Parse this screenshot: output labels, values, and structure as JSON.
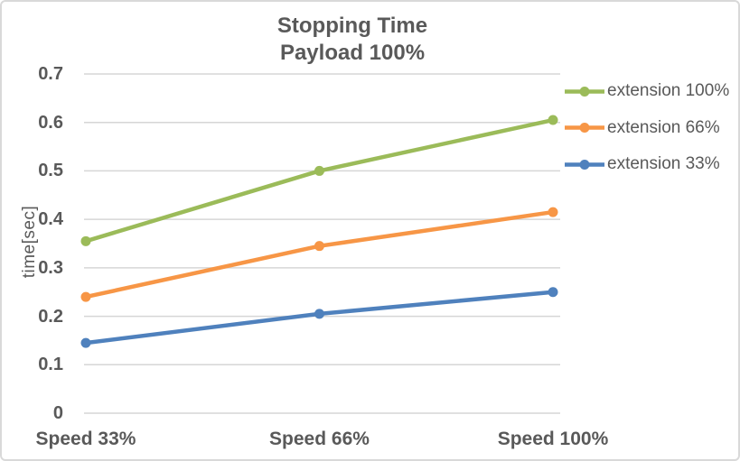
{
  "chart_frame": {
    "background": "#FFFFFF",
    "border_color": "#D9D9D9"
  },
  "chart_data": {
    "type": "line",
    "title": "Stopping Time Payload 100%",
    "title_lines": [
      "Stopping Time",
      "Payload 100%"
    ],
    "categories": [
      "Speed 33%",
      "Speed 66%",
      "Speed 100%"
    ],
    "series": [
      {
        "name": "extension 100%",
        "color": "#9BBB59",
        "values": [
          0.355,
          0.5,
          0.605
        ]
      },
      {
        "name": "extension 66%",
        "color": "#F79646",
        "values": [
          0.24,
          0.345,
          0.415
        ]
      },
      {
        "name": "extension 33%",
        "color": "#4F81BD",
        "values": [
          0.145,
          0.205,
          0.25
        ]
      }
    ],
    "xlabel": "",
    "ylabel": "time[sec]",
    "ylim": [
      0,
      0.7
    ],
    "yticks": [
      "0",
      "0.1",
      "0.2",
      "0.3",
      "0.4",
      "0.5",
      "0.6",
      "0.7"
    ],
    "grid": true,
    "grid_color": "#D6D6D6",
    "legend_position": "right",
    "marker": "circle",
    "line_width": 4.5,
    "text_color": "#595959"
  }
}
